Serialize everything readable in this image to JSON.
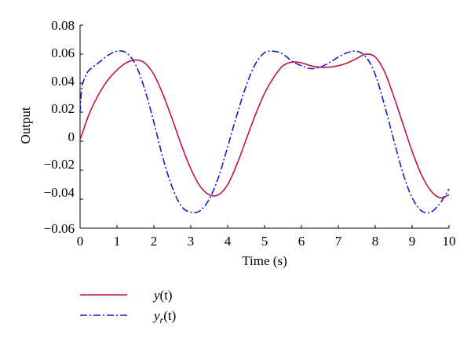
{
  "chart_data": {
    "type": "line",
    "xlabel": "Time (s)",
    "ylabel": "Output",
    "xlim": [
      0,
      10
    ],
    "ylim": [
      -0.06,
      0.08
    ],
    "x_ticks": [
      "0",
      "1",
      "2",
      "3",
      "4",
      "5",
      "6",
      "7",
      "8",
      "9",
      "10"
    ],
    "y_ticks": [
      "0.08",
      "0.06",
      "0.04",
      "0.02",
      "0",
      "−0.02",
      "−0.04",
      "−0.06"
    ],
    "grid": false,
    "legend_position": "bottom-left",
    "series": [
      {
        "name": "y(t)",
        "legend_main": "y",
        "legend_sub": "",
        "legend_arg": "(t)",
        "color": "#c0143c",
        "dash": "solid",
        "x": [
          0,
          0.25,
          0.5,
          0.75,
          1.0,
          1.25,
          1.5,
          1.75,
          2.0,
          2.25,
          2.5,
          2.75,
          3.0,
          3.25,
          3.5,
          3.75,
          4.0,
          4.25,
          4.5,
          4.75,
          5.0,
          5.25,
          5.5,
          5.75,
          6.0,
          6.25,
          6.5,
          6.75,
          7.0,
          7.25,
          7.5,
          7.75,
          8.0,
          8.25,
          8.5,
          8.75,
          9.0,
          9.25,
          9.5,
          9.75,
          10.0
        ],
        "values": [
          0.001,
          0.019,
          0.032,
          0.042,
          0.049,
          0.054,
          0.056,
          0.054,
          0.046,
          0.032,
          0.015,
          -0.003,
          -0.019,
          -0.031,
          -0.037,
          -0.037,
          -0.03,
          -0.016,
          0.001,
          0.018,
          0.033,
          0.044,
          0.052,
          0.0545,
          0.054,
          0.052,
          0.051,
          0.051,
          0.052,
          0.054,
          0.057,
          0.06,
          0.058,
          0.048,
          0.031,
          0.012,
          -0.007,
          -0.023,
          -0.034,
          -0.039,
          -0.037
        ]
      },
      {
        "name": "y_r(t)",
        "legend_main": "y",
        "legend_sub": "r",
        "legend_arg": "(t)",
        "color": "#1a1acc",
        "dash": "dashdot",
        "x": [
          0,
          0.05,
          0.15,
          0.25,
          0.5,
          0.75,
          1.0,
          1.25,
          1.5,
          1.75,
          2.0,
          2.25,
          2.5,
          2.75,
          3.0,
          3.25,
          3.5,
          3.75,
          4.0,
          4.25,
          4.5,
          4.75,
          5.0,
          5.25,
          5.5,
          5.75,
          6.0,
          6.25,
          6.5,
          6.75,
          7.0,
          7.25,
          7.5,
          7.75,
          8.0,
          8.25,
          8.5,
          8.75,
          9.0,
          9.25,
          9.5,
          9.75,
          10.0
        ],
        "values": [
          0.02,
          0.037,
          0.045,
          0.049,
          0.054,
          0.059,
          0.062,
          0.061,
          0.053,
          0.036,
          0.013,
          -0.012,
          -0.032,
          -0.045,
          -0.049,
          -0.048,
          -0.04,
          -0.025,
          -0.004,
          0.018,
          0.038,
          0.053,
          0.061,
          0.062,
          0.06,
          0.055,
          0.052,
          0.05,
          0.051,
          0.054,
          0.058,
          0.061,
          0.062,
          0.058,
          0.046,
          0.025,
          0.001,
          -0.022,
          -0.039,
          -0.048,
          -0.049,
          -0.043,
          -0.033
        ]
      }
    ]
  }
}
